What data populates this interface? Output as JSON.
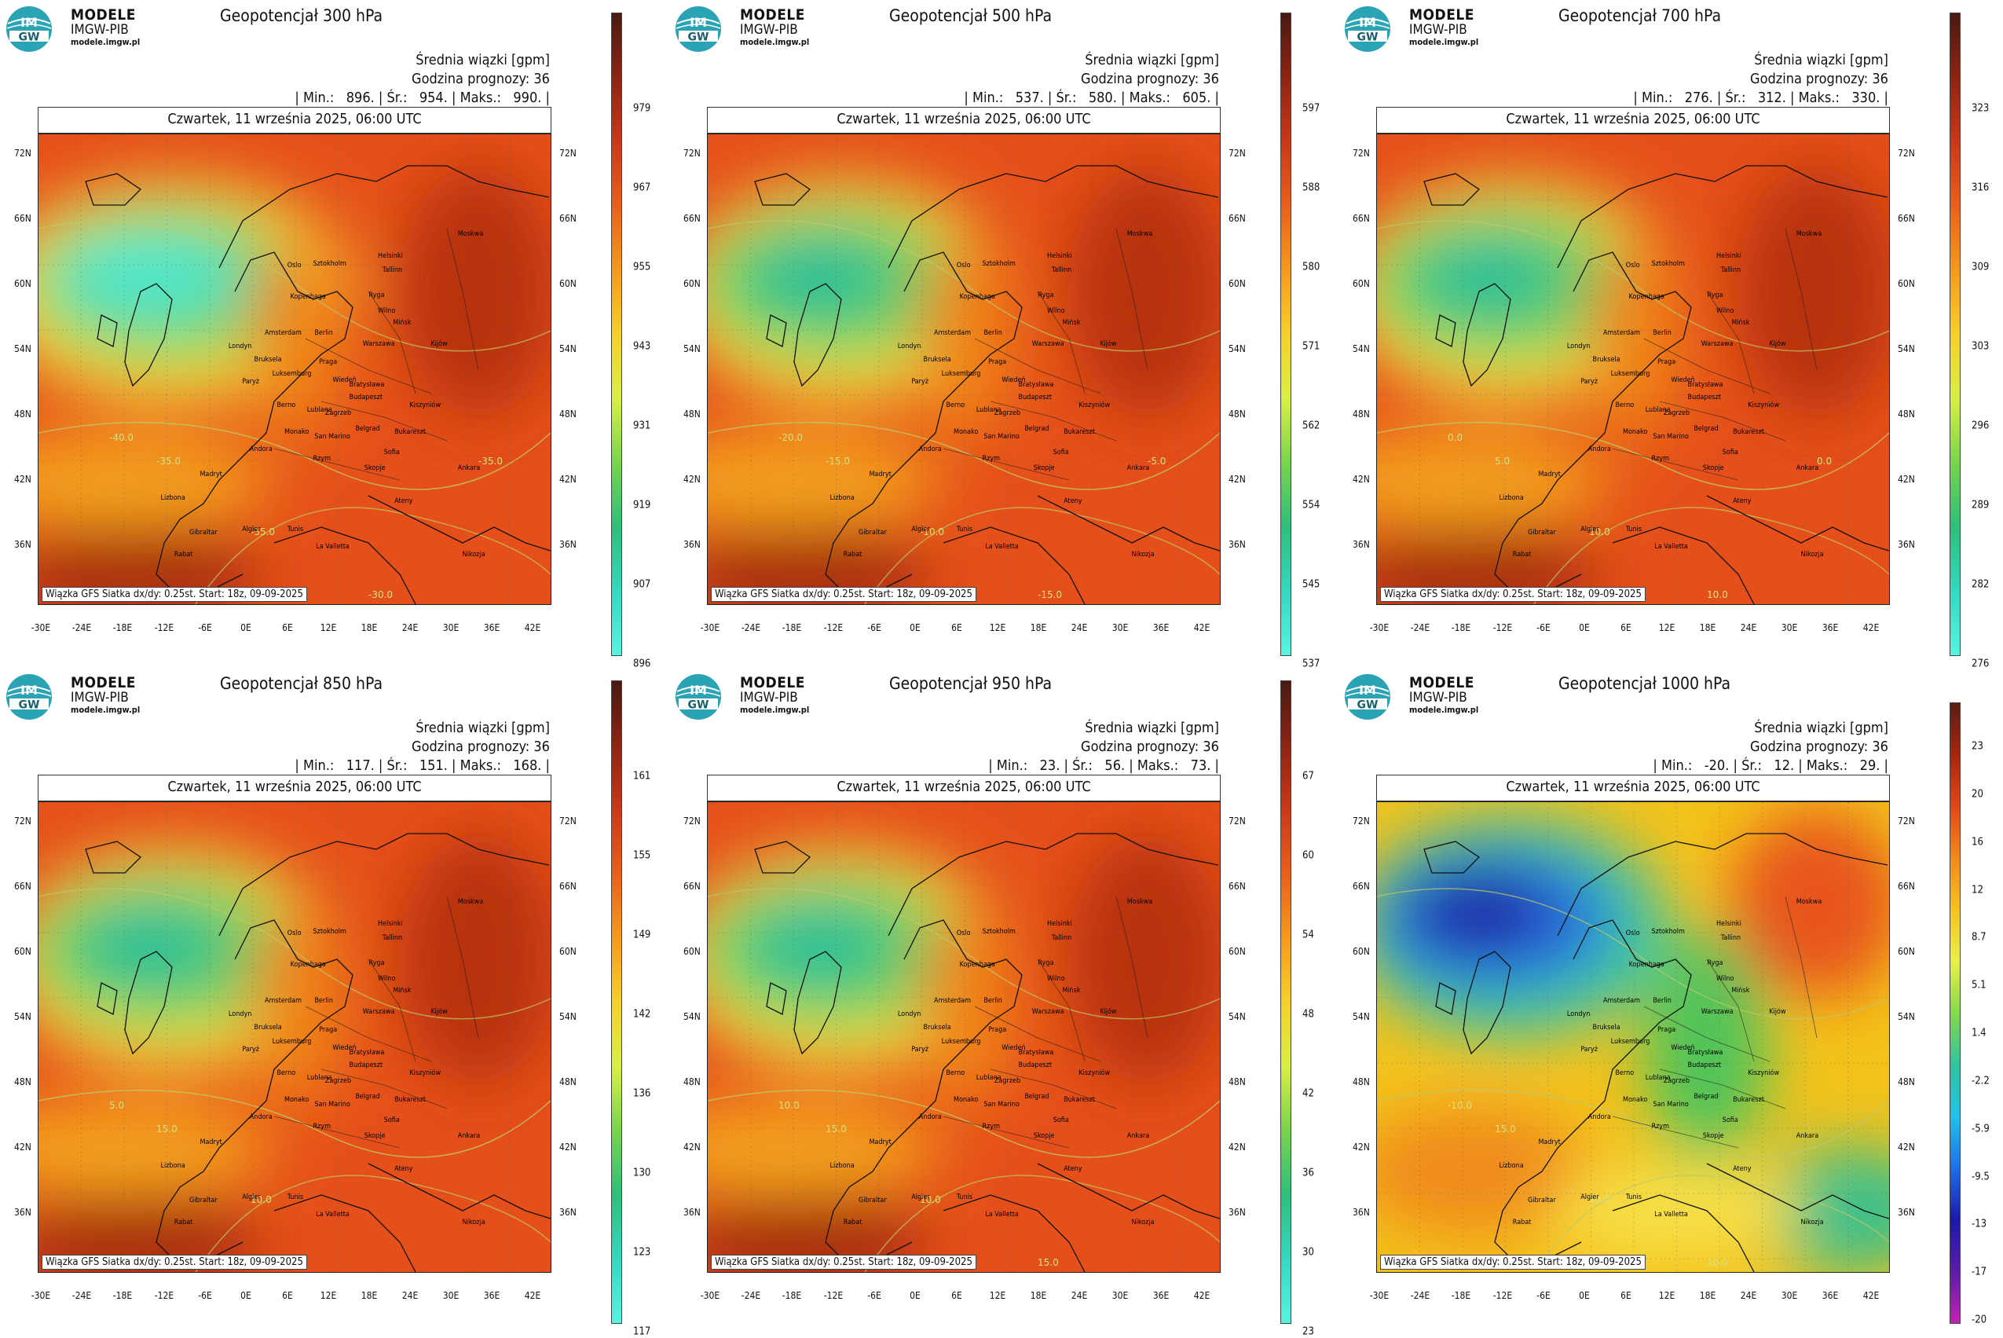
{
  "logo": {
    "brand": "MODELE",
    "org": "IMGW-PIB",
    "site": "modele.imgw.pl",
    "badge_top": "IM",
    "badge_bottom": "GW"
  },
  "common": {
    "avg_label": "Średnia wiązki [gpm]",
    "hour_label": "Godzina prognozy: 36",
    "date": "Czwartek, 11 września 2025, 06:00 UTC",
    "footer": "Wiązka GFS Siatka dx/dy: 0.25st. Start: 18z, 09-09-2025",
    "lat_labels": [
      "72N",
      "66N",
      "60N",
      "54N",
      "48N",
      "42N",
      "36N"
    ],
    "lon_labels": [
      "-30E",
      "-24E",
      "-18E",
      "-12E",
      "-6E",
      "0E",
      "6E",
      "12E",
      "18E",
      "24E",
      "30E",
      "36E",
      "42E"
    ],
    "cities": [
      "Oslo",
      "Sztokholm",
      "Helsinki",
      "Tallinn",
      "Ryga",
      "Moskwa",
      "Kopenhaga",
      "Wilno",
      "Mińsk",
      "Amsterdam",
      "Berlin",
      "Warszawa",
      "Londyn",
      "Bruksela",
      "Paryż",
      "Luksemburg",
      "Praga",
      "Kijów",
      "Wiedeń",
      "Bratysława",
      "Budapeszt",
      "Berno",
      "Kiszyniów",
      "Lublana",
      "Zagrzeb",
      "Belgrad",
      "Bukareszt",
      "Monako",
      "San Marino",
      "Sofia",
      "Andora",
      "Rzym",
      "Skopje",
      "Ankara",
      "Madryt",
      "Lizbona",
      "Ateny",
      "Algier",
      "Tunis",
      "Gibraltar",
      "La Valletta",
      "Rabat",
      "Nikozja"
    ]
  },
  "panels": [
    {
      "title": "Geopotencjał 300 hPa",
      "min": "896.",
      "avg": "954.",
      "max": "990.",
      "scale": [
        "979",
        "967",
        "955",
        "943",
        "931",
        "919",
        "907",
        "896"
      ],
      "scheme": "upper",
      "contours": [
        "-40.0",
        "-35.0",
        "-35.0",
        "-30.0",
        "-35.0"
      ]
    },
    {
      "title": "Geopotencjał 500 hPa",
      "min": "537.",
      "avg": "580.",
      "max": "605.",
      "scale": [
        "597",
        "588",
        "580",
        "571",
        "562",
        "554",
        "545",
        "537"
      ],
      "scheme": "upper",
      "contours": [
        "-20.0",
        "-15.0",
        "-10.0",
        "-15.0",
        "-5.0"
      ]
    },
    {
      "title": "Geopotencjał 700 hPa",
      "min": "276.",
      "avg": "312.",
      "max": "330.",
      "scale": [
        "323",
        "316",
        "309",
        "303",
        "296",
        "289",
        "282",
        "276"
      ],
      "scheme": "upper",
      "contours": [
        "0.0",
        "5.0",
        "10.0",
        "10.0",
        "0.0"
      ]
    },
    {
      "title": "Geopotencjał 850 hPa",
      "min": "117.",
      "avg": "151.",
      "max": "168.",
      "scale": [
        "161",
        "155",
        "149",
        "142",
        "136",
        "130",
        "123",
        "117"
      ],
      "scheme": "upper",
      "contours": [
        "5.0",
        "15.0",
        "10.0"
      ]
    },
    {
      "title": "Geopotencjał 950 hPa",
      "min": "23.",
      "avg": "56.",
      "max": "73.",
      "scale": [
        "67",
        "60",
        "54",
        "48",
        "42",
        "36",
        "30",
        "23"
      ],
      "scheme": "upper",
      "contours": [
        "10.0",
        "15.0",
        "10.0",
        "15.0"
      ]
    },
    {
      "title": "Geopotencjał 1000 hPa",
      "min": "-20.",
      "avg": "12.",
      "max": "29.",
      "scale": [
        "23",
        "20",
        "16",
        "12",
        "8.7",
        "5.1",
        "1.4",
        "-2.2",
        "-5.9",
        "-9.5",
        "-13",
        "-17",
        "-20"
      ],
      "scheme": "full",
      "contours": [
        "-10.0",
        "15.0",
        "20.0",
        "10.0"
      ]
    }
  ]
}
